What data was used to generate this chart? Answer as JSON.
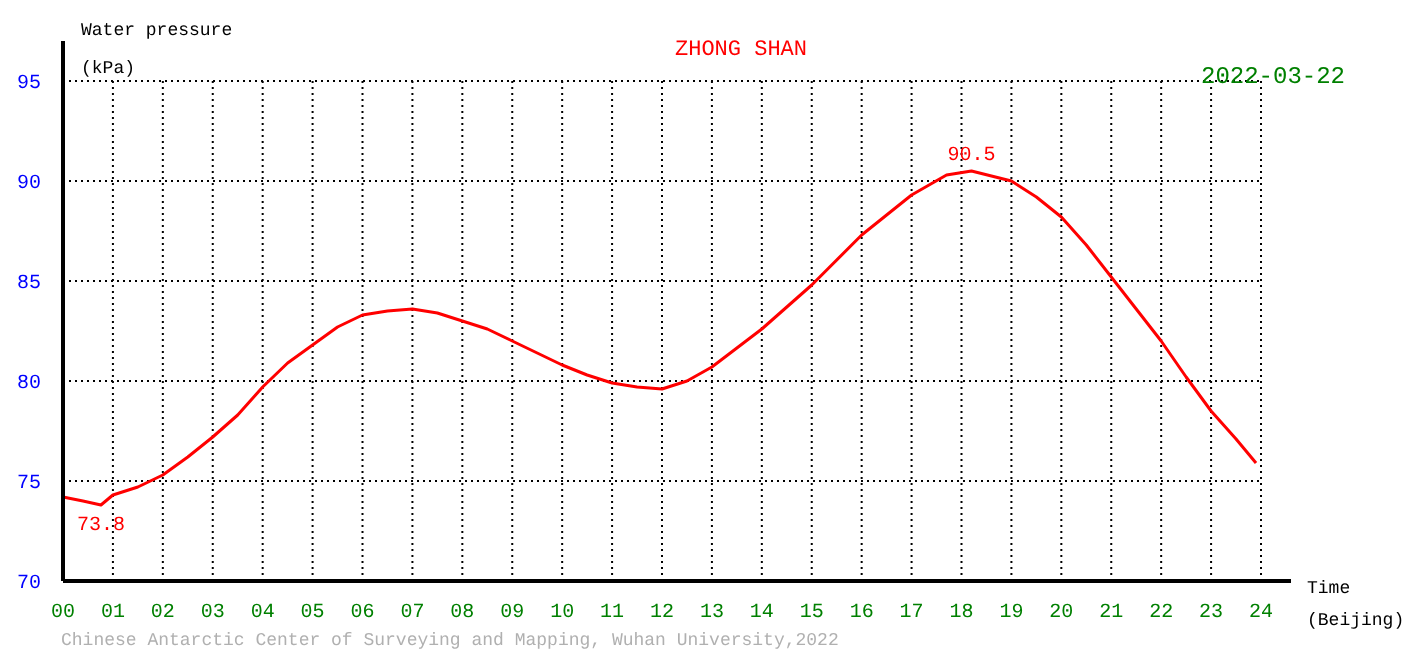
{
  "chart_data": {
    "type": "line",
    "title": "ZHONG SHAN",
    "xlabel": "Time\n(Beijing)",
    "ylabel": "Water pressure\n(kPa)",
    "x": [
      0,
      0.4,
      0.76,
      1,
      1.5,
      2,
      2.5,
      3,
      3.5,
      4,
      4.5,
      5,
      5.5,
      6,
      6.5,
      7,
      7.5,
      8,
      8.5,
      9,
      9.5,
      10,
      10.5,
      11,
      11.5,
      12,
      12.5,
      13,
      14,
      15,
      16,
      17,
      17.7,
      18.2,
      19,
      19.5,
      20,
      20.5,
      21,
      21.5,
      22,
      22.5,
      23,
      23.5,
      23.9
    ],
    "series": [
      {
        "color": "#ff0000",
        "values": [
          74.2,
          74,
          73.8,
          74.3,
          74.7,
          75.3,
          76.2,
          77.2,
          78.3,
          79.7,
          80.9,
          81.8,
          82.7,
          83.3,
          83.5,
          83.6,
          83.4,
          83.0,
          82.6,
          82.0,
          81.4,
          80.8,
          80.3,
          79.9,
          79.7,
          79.6,
          80.0,
          80.7,
          82.6,
          84.8,
          87.3,
          89.3,
          90.3,
          90.5,
          90.0,
          89.2,
          88.2,
          86.8,
          85.2,
          83.6,
          82.0,
          80.2,
          78.5,
          77.1,
          75.9
        ]
      }
    ],
    "xlim": [
      0,
      24
    ],
    "ylim": [
      70,
      95
    ],
    "xticks": [
      {
        "value": 0,
        "label": "00"
      },
      {
        "value": 1,
        "label": "01"
      },
      {
        "value": 2,
        "label": "02"
      },
      {
        "value": 3,
        "label": "03"
      },
      {
        "value": 4,
        "label": "04"
      },
      {
        "value": 5,
        "label": "05"
      },
      {
        "value": 6,
        "label": "06"
      },
      {
        "value": 7,
        "label": "07"
      },
      {
        "value": 8,
        "label": "08"
      },
      {
        "value": 9,
        "label": "09"
      },
      10,
      11,
      12,
      13,
      14,
      15,
      16,
      17,
      18,
      19,
      20,
      21,
      22,
      23,
      24
    ],
    "yticks": [
      70,
      75,
      80,
      85,
      90,
      95
    ],
    "grid": true,
    "marker": "none",
    "line_style": "solid",
    "annotations": [
      {
        "text": "73.8",
        "x": 0.76,
        "y": 73.8
      },
      {
        "text": "90.5",
        "x": 18.2,
        "y": 90.5
      },
      "2022-03-22",
      "Chinese Antarctic Center of Surveying and Mapping, Wuhan University,2022"
    ]
  }
}
